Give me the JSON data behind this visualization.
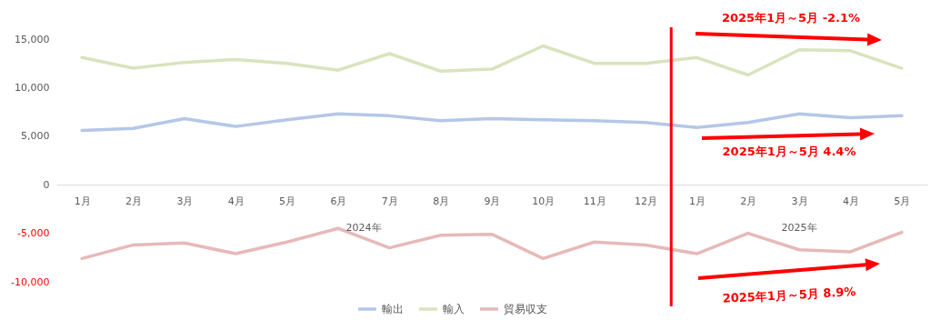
{
  "chart_data": {
    "type": "line",
    "categories": [
      "1月",
      "2月",
      "3月",
      "4月",
      "5月",
      "6月",
      "7月",
      "8月",
      "9月",
      "10月",
      "11月",
      "12月",
      "1月",
      "2月",
      "3月",
      "4月",
      "5月"
    ],
    "series": [
      {
        "name": "輸出",
        "color": "#b4c7e7",
        "values": [
          5600,
          5800,
          6800,
          6000,
          6700,
          7300,
          7100,
          6600,
          6800,
          6700,
          6600,
          6400,
          5900,
          6400,
          7300,
          6900,
          7100
        ]
      },
      {
        "name": "輸入",
        "color": "#d7e4bd",
        "values": [
          13100,
          12000,
          12600,
          12900,
          12500,
          11800,
          13500,
          11700,
          11900,
          14300,
          12500,
          12500,
          13100,
          11300,
          13900,
          13800,
          12000
        ]
      },
      {
        "name": "貿易収支",
        "color": "#e6b9b8",
        "values": [
          -7600,
          -6200,
          -6000,
          -7100,
          -5900,
          -4500,
          -6500,
          -5200,
          -5100,
          -7600,
          -5900,
          -6200,
          -7100,
          -5000,
          -6700,
          -6900,
          -4900
        ]
      }
    ],
    "ylim": [
      -10000,
      15000
    ],
    "yticks": [
      {
        "value": -10000,
        "label": "-10,000"
      },
      {
        "value": -5000,
        "label": "-5,000"
      },
      0,
      {
        "value": 5000,
        "label": "5,000"
      },
      {
        "value": 10000,
        "label": "10,000"
      },
      {
        "value": 15000,
        "label": "15,000"
      }
    ],
    "grid": false,
    "legend": "bottom",
    "marker": "none",
    "line_style": "solid",
    "annotations": [
      "2024年",
      "2025年",
      "2025年1月～5月 -2.1%",
      "2025年1月～5月 4.4%",
      "2025年1月～5月 8.9%"
    ]
  }
}
